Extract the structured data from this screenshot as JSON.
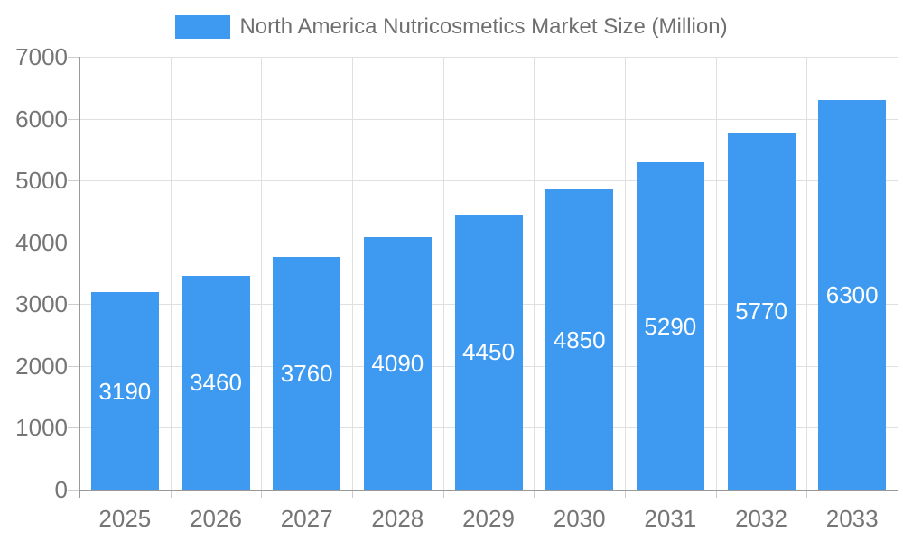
{
  "legend": {
    "label": "North America Nutricosmetics Market Size (Million)"
  },
  "chart_data": {
    "type": "bar",
    "title": "North America Nutricosmetics Market Size (Million)",
    "categories": [
      "2025",
      "2026",
      "2027",
      "2028",
      "2029",
      "2030",
      "2031",
      "2032",
      "2033"
    ],
    "series": [
      {
        "name": "North America Nutricosmetics Market Size (Million)",
        "values": [
          3190,
          3460,
          3760,
          4090,
          4450,
          4850,
          5290,
          5770,
          6300
        ]
      }
    ],
    "value_labels": [
      "3190",
      "3460",
      "3760",
      "4090",
      "4450",
      "4850",
      "5290",
      "5770",
      "6300"
    ],
    "xlabel": "",
    "ylabel": "",
    "ylim": [
      0,
      7000
    ],
    "ytick_step": 1000,
    "yticks": [
      "0",
      "1000",
      "2000",
      "3000",
      "4000",
      "5000",
      "6000",
      "7000"
    ],
    "grid": true,
    "legend_position": "top",
    "bar_color": "#3D9AF0",
    "value_label_color": "#FFFFFF",
    "grid_color": "#E0E0E0",
    "axis_color": "#999999",
    "tick_color": "#CCCCCC",
    "label_color": "#757575"
  }
}
